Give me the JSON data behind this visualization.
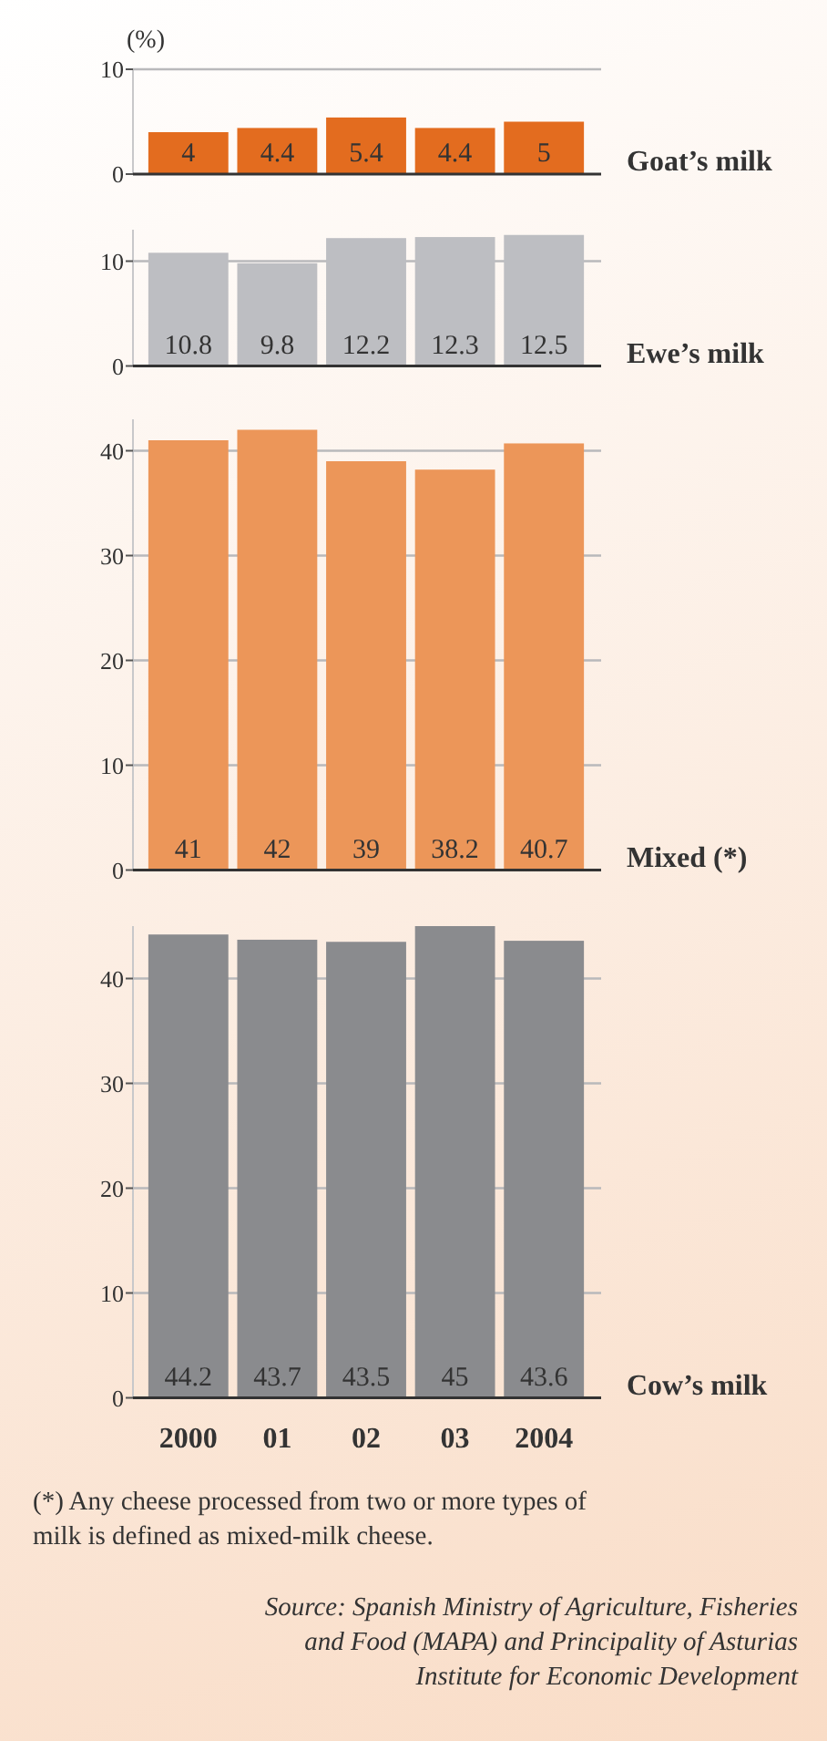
{
  "chart_data": [
    {
      "type": "bar",
      "ylabel": "(%)",
      "categories": [
        null,
        null,
        null,
        null,
        null
      ],
      "series": [
        {
          "name": "Goat’s milk",
          "color": "#e36c1f",
          "values": [
            4,
            4.4,
            5.4,
            4.4,
            5
          ]
        }
      ],
      "ylim": [
        0,
        10
      ],
      "yticks": [
        0,
        10
      ],
      "grid": "y",
      "data_labels": true,
      "tick_labels": "y"
    },
    {
      "type": "bar",
      "categories": [
        null,
        null,
        null,
        null,
        null
      ],
      "series": [
        {
          "name": "Ewe’s milk",
          "color": "#bdbec2",
          "values": [
            10.8,
            9.8,
            12.2,
            12.3,
            12.5
          ]
        }
      ],
      "ylim": [
        0,
        13
      ],
      "yticks": [
        0,
        10
      ],
      "grid": "y",
      "data_labels": true,
      "tick_labels": "y"
    },
    {
      "type": "bar",
      "categories": [
        null,
        null,
        null,
        null,
        null
      ],
      "series": [
        {
          "name": "Mixed (*)",
          "color": "#ec9659",
          "values": [
            41,
            42,
            39,
            38.2,
            40.7
          ]
        }
      ],
      "ylim": [
        0,
        43
      ],
      "yticks": [
        0,
        10,
        20,
        30,
        40
      ],
      "grid": "y",
      "data_labels": true,
      "tick_labels": "y"
    },
    {
      "type": "bar",
      "categories": [
        "2000",
        "01",
        "02",
        "03",
        "2004"
      ],
      "series": [
        {
          "name": "Cow’s milk",
          "color": "#8a8b8e",
          "values": [
            44.2,
            43.7,
            43.5,
            45,
            43.6
          ]
        }
      ],
      "ylim": [
        0,
        45
      ],
      "yticks": [
        0,
        10,
        20,
        30,
        40
      ],
      "grid": "y",
      "data_labels": true,
      "annotations": [
        "(*) Any cheese processed from two or more types of milk is defined as mixed-milk cheese.",
        "Source: Spanish Ministry of Agriculture, Fisheries and Food (MAPA) and Principality of Asturias Institute for Economic Development"
      ]
    }
  ]
}
